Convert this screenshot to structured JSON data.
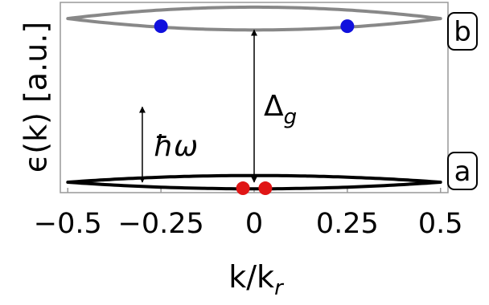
{
  "chart_data": {
    "type": "line",
    "title": "",
    "xlabel": {
      "main": "k/k",
      "sub": "r"
    },
    "ylabel": "ϵ(k) [a.u.]",
    "xlim": [
      -0.52,
      0.52
    ],
    "ylim": [
      0,
      1
    ],
    "x_ticks": [
      {
        "value": -0.5,
        "label": "−0.5"
      },
      {
        "value": -0.25,
        "label": "−0.25"
      },
      {
        "value": 0,
        "label": "0"
      },
      {
        "value": 0.25,
        "label": "0.25"
      },
      {
        "value": 0.5,
        "label": "0.5"
      }
    ],
    "grid": false,
    "bands": [
      {
        "id": "b",
        "label": "b",
        "color": "#888888",
        "center": 0.915,
        "half_width": 0.06
      },
      {
        "id": "a",
        "label": "a",
        "color": "#000000",
        "center": 0.055,
        "half_width": 0.035
      }
    ],
    "points": [
      {
        "band": "b",
        "x": -0.25,
        "y": 0.875,
        "color": "#1010dd"
      },
      {
        "band": "b",
        "x": 0.25,
        "y": 0.875,
        "color": "#1010dd"
      },
      {
        "band": "a",
        "x": -0.03,
        "y": 0.023,
        "color": "#e01515"
      },
      {
        "band": "a",
        "x": 0.03,
        "y": 0.023,
        "color": "#e01515"
      }
    ],
    "annotations": [
      {
        "id": "gap",
        "kind": "double-arrow",
        "x": 0,
        "y_from": 0.055,
        "y_to": 0.855,
        "label_main": "Δ",
        "label_sub": "g"
      },
      {
        "id": "photon",
        "kind": "double-arrow",
        "x": -0.3,
        "y_from": 0.055,
        "y_to": 0.45,
        "label": "ħω"
      }
    ]
  }
}
